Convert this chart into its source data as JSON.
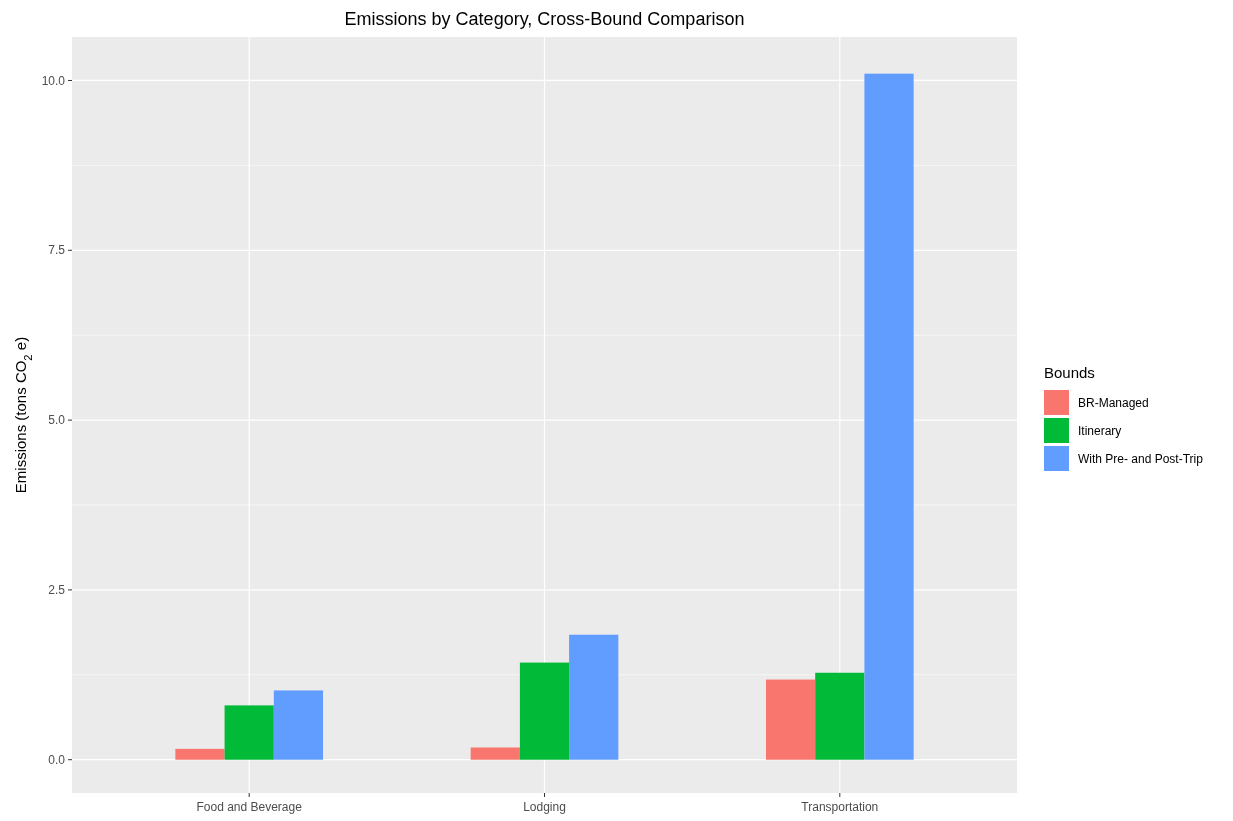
{
  "chart_data": {
    "type": "bar",
    "title": "Emissions by Category, Cross-Bound Comparison",
    "ylabel": "Emissions (tons CO$_{2}$ e)",
    "legend_title": "Bounds",
    "categories": [
      "Food and Beverage",
      "Lodging",
      "Transportation"
    ],
    "series": [
      {
        "name": "BR-Managed",
        "color": "#f8766d",
        "values": [
          0.16,
          0.18,
          1.18
        ]
      },
      {
        "name": "Itinerary",
        "color": "#00ba38",
        "values": [
          0.8,
          1.43,
          1.28
        ]
      },
      {
        "name": "With Pre- and Post-Trip",
        "color": "#619cff",
        "values": [
          1.02,
          1.84,
          10.1
        ]
      }
    ],
    "ylim": [
      -0.49,
      10.64
    ],
    "yticks": [
      {
        "value": 0,
        "label": "0.0"
      },
      {
        "value": 1.25,
        "label": null
      },
      {
        "value": 2.5,
        "label": "2.5"
      },
      {
        "value": 3.75,
        "label": null
      },
      {
        "value": 5,
        "label": "5.0"
      },
      {
        "value": 6.25,
        "label": null
      },
      {
        "value": 7.5,
        "label": "7.5"
      },
      {
        "value": 8.75,
        "label": null
      },
      {
        "value": 10,
        "label": "10.0"
      }
    ],
    "grid": true,
    "legend": "right"
  }
}
